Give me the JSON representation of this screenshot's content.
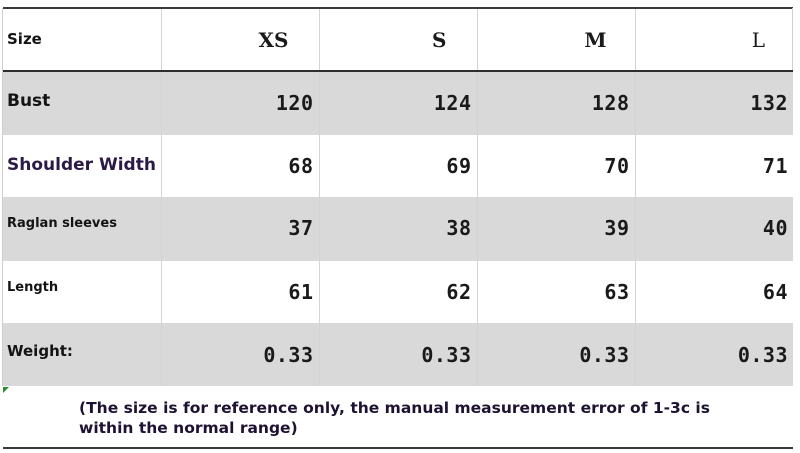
{
  "table": {
    "header": {
      "label": "Size",
      "sizes": [
        "XS",
        "S",
        "M",
        "L"
      ]
    },
    "rows": [
      {
        "label": "Bust",
        "values": [
          "120",
          "124",
          "128",
          "132"
        ]
      },
      {
        "label": "Shoulder Width",
        "values": [
          "68",
          "69",
          "70",
          "71"
        ]
      },
      {
        "label": "Raglan sleeves",
        "values": [
          "37",
          "38",
          "39",
          "40"
        ]
      },
      {
        "label": "Length",
        "values": [
          "61",
          "62",
          "63",
          "64"
        ]
      },
      {
        "label": "Weight:",
        "values": [
          "0.33",
          "0.33",
          "0.33",
          "0.33"
        ]
      }
    ]
  },
  "note": "(The size is for reference only, the manual measurement error of 1-3c is within the normal range)",
  "colors": {
    "shaded_row": "#d9d9d9",
    "rule": "#2e2e2e",
    "note_text": "#1e1233",
    "corner_mark": "#2e8b2e"
  }
}
